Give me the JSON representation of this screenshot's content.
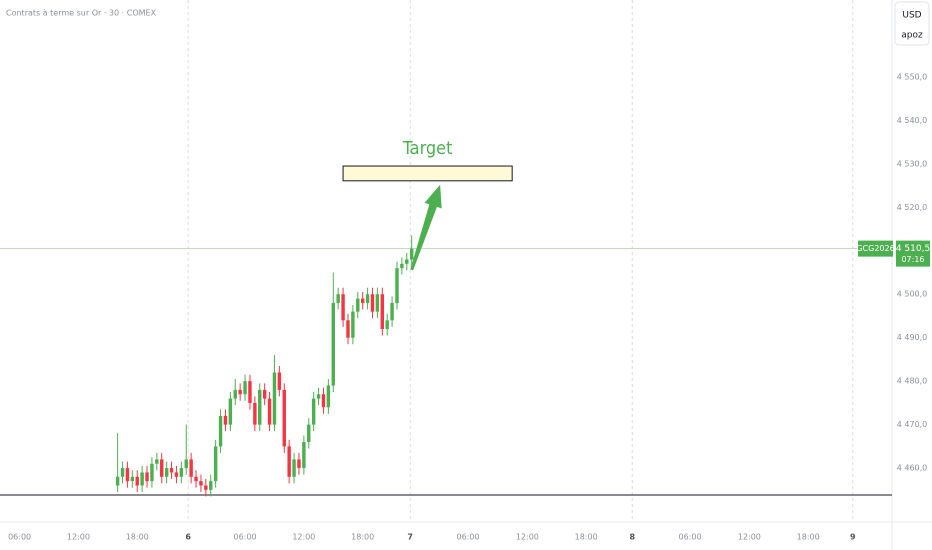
{
  "chart_data": {
    "type": "candlestick",
    "title": "Contrats à terme sur Or · 30 · COMEX",
    "currency": "USD",
    "scale_mode": "apoz",
    "symbol": "GCG2026",
    "last_price": {
      "value": 4510.5,
      "label": "4 510,5"
    },
    "countdown": "07:16",
    "up_color": "#4caf50",
    "down_color": "#f23645",
    "xlim": [
      0,
      182
    ],
    "ylim": [
      4447.6,
      4567.7
    ],
    "yticks": [
      {
        "value": 4460,
        "label": "4 460,0"
      },
      {
        "value": 4470,
        "label": "4 470,0"
      },
      {
        "value": 4480,
        "label": "4 480,0"
      },
      {
        "value": 4490,
        "label": "4 490,0"
      },
      {
        "value": 4500,
        "label": "4 500,0"
      },
      {
        "value": 4510,
        "label": "4 510,0"
      },
      {
        "value": 4520,
        "label": "4 520,0"
      },
      {
        "value": 4530,
        "label": "4 530,0"
      },
      {
        "value": 4540,
        "label": "4 540,0"
      },
      {
        "value": 4550,
        "label": "4 550,0"
      }
    ],
    "xticks": [
      {
        "value": 4,
        "label": "06:00"
      },
      {
        "value": 16,
        "label": "12:00"
      },
      {
        "value": 28,
        "label": "18:00"
      },
      {
        "value": 38.4,
        "label": "6",
        "bold": true
      },
      {
        "value": 50,
        "label": "06:00"
      },
      {
        "value": 62,
        "label": "12:00"
      },
      {
        "value": 74,
        "label": "18:00"
      },
      {
        "value": 83.7,
        "label": "7",
        "bold": true
      },
      {
        "value": 95.5,
        "label": "06:00"
      },
      {
        "value": 107.6,
        "label": "12:00"
      },
      {
        "value": 119.6,
        "label": "18:00"
      },
      {
        "value": 129,
        "label": "8",
        "bold": true
      },
      {
        "value": 140.8,
        "label": "06:00"
      },
      {
        "value": 152.9,
        "label": "12:00"
      },
      {
        "value": 164.9,
        "label": "18:00"
      },
      {
        "value": 174,
        "label": "9",
        "bold": true
      }
    ],
    "x": [
      24,
      25,
      26,
      27,
      28,
      29,
      30,
      31,
      32,
      33,
      34,
      35,
      36,
      37,
      38,
      39,
      40,
      41,
      42,
      43,
      44,
      45,
      46,
      47,
      48,
      49,
      50,
      51,
      52,
      53,
      54,
      55,
      56,
      57,
      58,
      59,
      60,
      61,
      62,
      63,
      64,
      65,
      66,
      67,
      68,
      69,
      70,
      71,
      72,
      73,
      74,
      75,
      76,
      77,
      78,
      79,
      80,
      81,
      82,
      83,
      84
    ],
    "open": [
      4456,
      4458,
      4460,
      4457,
      4458,
      4456,
      4459,
      4457,
      4461,
      4462,
      4458,
      4460,
      4459,
      4458,
      4460,
      4462,
      4458,
      4457,
      4456,
      4455,
      4457,
      4465,
      4472,
      4470,
      4476,
      4478,
      4477,
      4480,
      4475,
      4470,
      4478,
      4476,
      4470,
      4482,
      4478,
      4465,
      4458,
      4462,
      4460,
      4466,
      4470,
      4476,
      4477,
      4474,
      4479,
      4498,
      4500,
      4494,
      4490,
      4496,
      4499,
      4498,
      4500,
      4496,
      4500,
      4492,
      4494,
      4498,
      4506,
      4507,
      4508
    ],
    "high": [
      4468,
      4461.5,
      4461.5,
      4459.5,
      4459.5,
      4460.5,
      4460.5,
      4462.5,
      4463.5,
      4463.5,
      4461.5,
      4461.5,
      4460.5,
      4461.5,
      4470,
      4463.5,
      4459.5,
      4458.5,
      4457.5,
      4458.5,
      4466.5,
      4473.5,
      4473.5,
      4477.5,
      4480.5,
      4479.5,
      4481.5,
      4481.5,
      4476.5,
      4479.5,
      4479.5,
      4477.5,
      4486,
      4483.5,
      4479.5,
      4466.5,
      4463.5,
      4463.5,
      4467.5,
      4471.5,
      4477.5,
      4478.5,
      4478.5,
      4480.5,
      4505,
      4501.5,
      4501.5,
      4495.5,
      4497.5,
      4500.5,
      4500.5,
      4501.5,
      4501.5,
      4501.5,
      4501.5,
      4495.5,
      4499.5,
      4507.5,
      4508.5,
      4509.5,
      4513.5
    ],
    "low": [
      4454.5,
      4456.5,
      4455.5,
      4455.5,
      4454.5,
      4454.5,
      4455.5,
      4455.5,
      4459.5,
      4456.5,
      4456.5,
      4457.5,
      4456.5,
      4456.5,
      4458.5,
      4456.5,
      4455.5,
      4454.5,
      4453.5,
      4453.5,
      4455.5,
      4463.5,
      4468.5,
      4468.5,
      4474.5,
      4475.5,
      4475.5,
      4473.5,
      4468.5,
      4468.5,
      4474.5,
      4468.5,
      4468.5,
      4476.5,
      4463.5,
      4456.5,
      4456.5,
      4458.5,
      4458.5,
      4464.5,
      4468.5,
      4474.5,
      4472.5,
      4472.5,
      4477.5,
      4496.5,
      4492.5,
      4488.5,
      4488.5,
      4494.5,
      4496.5,
      4496.5,
      4494.5,
      4494.5,
      4490.5,
      4490.5,
      4492.5,
      4496.5,
      4504.5,
      4505.5,
      4506.5
    ],
    "close": [
      4458,
      4460,
      4457,
      4458,
      4456,
      4459,
      4457,
      4461,
      4462,
      4458,
      4460,
      4459,
      4458,
      4460,
      4462,
      4458,
      4457,
      4456,
      4455,
      4457,
      4465,
      4472,
      4470,
      4476,
      4478,
      4477,
      4480,
      4475,
      4470,
      4478,
      4476,
      4470,
      4482,
      4478,
      4465,
      4458,
      4462,
      4460,
      4466,
      4470,
      4476,
      4477,
      4474,
      4479,
      4498,
      4500,
      4494,
      4490,
      4496,
      4499,
      4498,
      4500,
      4496,
      4500,
      4492,
      4494,
      4498,
      4506,
      4507,
      4508,
      4510.5
    ],
    "target": {
      "label": "Target",
      "x": [
        70,
        104.5
      ],
      "y": [
        4526.1,
        4529.5
      ],
      "color": "#4caf50"
    },
    "arrow": {
      "x": [
        84,
        89.8
      ],
      "y": [
        4505.6,
        4525.2
      ]
    },
    "hline": 4453.8
  }
}
